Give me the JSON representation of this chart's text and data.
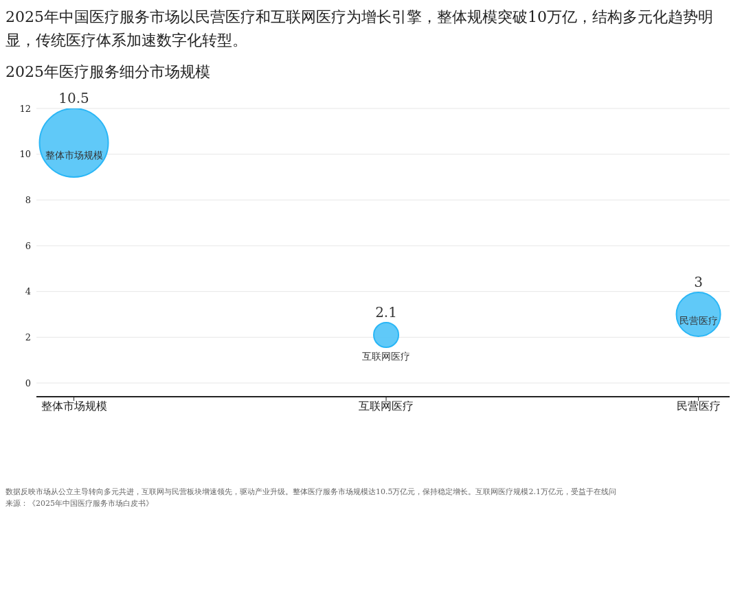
{
  "chart_data": {
    "type": "bubble",
    "title": "2025年中国医疗服务市场以民营医疗和互联网医疗为增长引擎，整体规模突破10万亿，结构多元化趋势明显，传统医疗体系加速数字化转型。",
    "subtitle": "2025年医疗服务细分市场规模",
    "categories": [
      "整体市场规模",
      "互联网医疗",
      "民营医疗"
    ],
    "values": [
      10.5,
      2.1,
      3
    ],
    "sizes": [
      1,
      0.13,
      0.41
    ],
    "color": "#4fc3f7",
    "ylim": [
      -0.6,
      12
    ],
    "yticks": [
      0,
      2,
      4,
      6,
      8,
      10,
      12
    ],
    "grid": "y",
    "legend": false,
    "data_labels": true,
    "annotations": [
      "数据反映市场从公立主导转向多元共进，互联网与民营板块增速领先，驱动产业升级。整体医疗服务市场规模达10.5万亿元，保持稳定增长。互联网医疗规模2.1万亿元，受益于在线问",
      "来源：《2025年中国医疗服务市场白皮书》"
    ]
  }
}
